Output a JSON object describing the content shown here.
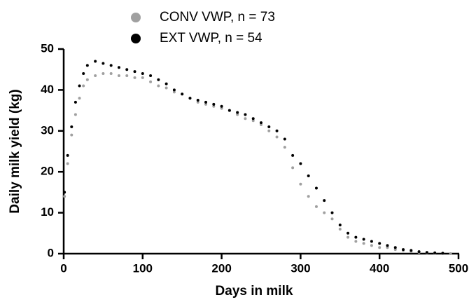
{
  "chart_data": {
    "type": "scatter",
    "x_label": "Days in milk",
    "y_label": "Daily milk yield (kg)",
    "xlim": [
      0,
      500
    ],
    "xticks": [
      0,
      100,
      200,
      300,
      400,
      500
    ],
    "ylim": [
      0,
      50
    ],
    "yticks": [
      0,
      10,
      20,
      30,
      40,
      50
    ],
    "series": [
      {
        "name": "CONV VWP, n = 73",
        "color": "#a0a0a0",
        "x": [
          1,
          5,
          10,
          15,
          20,
          25,
          30,
          40,
          50,
          60,
          70,
          80,
          90,
          100,
          110,
          120,
          130,
          140,
          150,
          160,
          170,
          180,
          190,
          200,
          210,
          220,
          230,
          240,
          250,
          260,
          270,
          280,
          290,
          300,
          310,
          320,
          330,
          340,
          350,
          360,
          370,
          380,
          390,
          400,
          410,
          420,
          430,
          440,
          450,
          460,
          470,
          480,
          490
        ],
        "values": [
          14,
          22,
          29,
          34,
          38,
          41,
          42.5,
          43.5,
          44,
          44,
          43.5,
          43.5,
          43,
          43,
          42,
          41,
          40.5,
          39.5,
          39,
          38,
          37,
          36.5,
          36,
          35.5,
          35,
          34,
          33,
          32.5,
          31.5,
          30,
          28.5,
          26,
          21,
          17,
          14,
          11.5,
          10,
          8.5,
          6,
          4,
          3,
          2.5,
          2,
          1.5,
          1.5,
          1,
          0.8,
          0.5,
          0.3,
          0.2,
          0.1,
          0.1,
          0
        ]
      },
      {
        "name": "EXT VWP, n = 54",
        "color": "#000000",
        "x": [
          1,
          5,
          10,
          15,
          20,
          25,
          30,
          40,
          50,
          60,
          70,
          80,
          90,
          100,
          110,
          120,
          130,
          140,
          150,
          160,
          170,
          180,
          190,
          200,
          210,
          220,
          230,
          240,
          250,
          260,
          270,
          280,
          290,
          300,
          310,
          320,
          330,
          340,
          350,
          360,
          370,
          380,
          390,
          400,
          410,
          420,
          430,
          440,
          450,
          460,
          470,
          480
        ],
        "values": [
          15,
          24,
          31,
          37,
          41,
          44,
          46,
          47,
          46.5,
          46,
          45.5,
          45,
          44.5,
          44,
          43.5,
          42.5,
          41.5,
          40,
          39,
          38,
          37.5,
          37,
          36.5,
          36,
          35,
          34.5,
          34,
          33,
          32,
          31,
          30,
          28,
          24,
          22,
          19,
          16,
          13,
          10,
          7,
          5,
          4,
          3.5,
          3,
          2.5,
          2,
          1.5,
          1,
          0.8,
          0.5,
          0.3,
          0.2,
          0.1
        ]
      }
    ]
  }
}
